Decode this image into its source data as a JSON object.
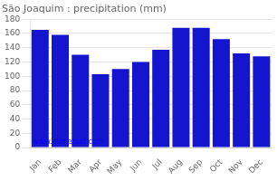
{
  "chart_data": {
    "type": "bar",
    "title": "São Joaquim : precipitation (mm)",
    "categories": [
      "Jan",
      "Feb",
      "Mar",
      "Apr",
      "May",
      "Jun",
      "Jul",
      "Aug",
      "Sep",
      "Oct",
      "Nov",
      "Dec"
    ],
    "values": [
      165,
      158,
      130,
      103,
      110,
      120,
      137,
      168,
      168,
      152,
      132,
      128
    ],
    "color": "#1515d0",
    "ylim": [
      0,
      180
    ],
    "yticks": [
      0,
      20,
      40,
      60,
      80,
      100,
      120,
      140,
      160,
      180
    ],
    "grid": true,
    "annotations": [
      "www.allmetsat.com"
    ]
  }
}
